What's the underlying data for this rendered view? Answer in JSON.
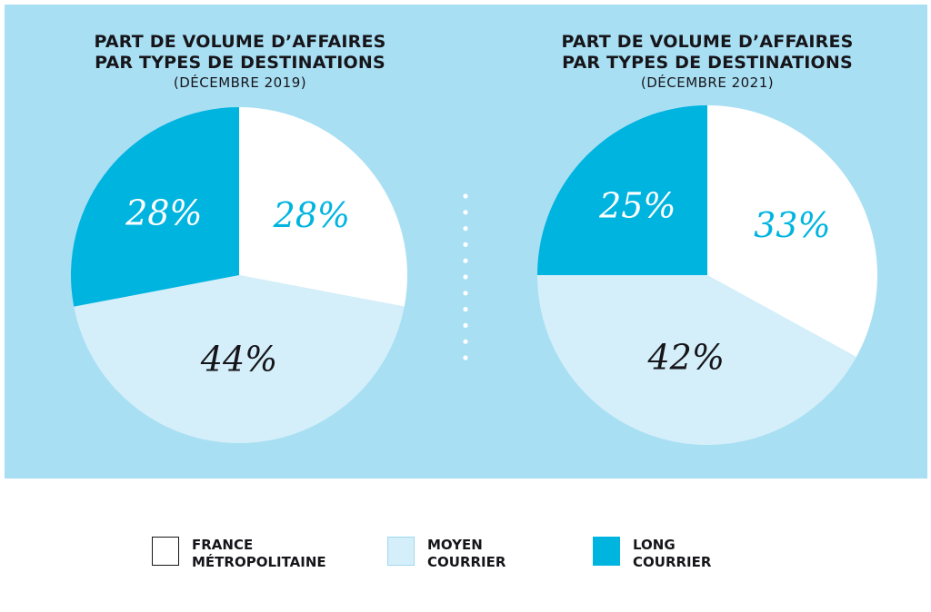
{
  "colors": {
    "panel_bg": "#a9dff3",
    "france": "#ffffff",
    "moyen": "#d4eff9",
    "long": "#00b4e0",
    "text_dark": "#16151a",
    "dots": "#ffffff"
  },
  "chart_data": [
    {
      "type": "pie",
      "title": [
        "PART DE VOLUME D’AFFAIRES",
        "PAR TYPES DE DESTINATIONS"
      ],
      "subtitle": "(DÉCEMBRE 2019)",
      "slices": [
        {
          "key": "france",
          "value": 28,
          "label": "28%"
        },
        {
          "key": "moyen",
          "value": 44,
          "label": "44%"
        },
        {
          "key": "long",
          "value": 28,
          "label": "28%"
        }
      ]
    },
    {
      "type": "pie",
      "title": [
        "PART DE VOLUME D’AFFAIRES",
        "PAR TYPES DE DESTINATIONS"
      ],
      "subtitle": "(DÉCEMBRE 2021)",
      "slices": [
        {
          "key": "france",
          "value": 33,
          "label": "33%"
        },
        {
          "key": "moyen",
          "value": 42,
          "label": "42%"
        },
        {
          "key": "long",
          "value": 25,
          "label": "25%"
        }
      ]
    }
  ],
  "legend": [
    {
      "key": "france",
      "lines": [
        "FRANCE",
        "MÉTROPOLITAINE"
      ]
    },
    {
      "key": "moyen",
      "lines": [
        "MOYEN",
        "COURRIER"
      ]
    },
    {
      "key": "long",
      "lines": [
        "LONG",
        "COURRIER"
      ]
    }
  ]
}
